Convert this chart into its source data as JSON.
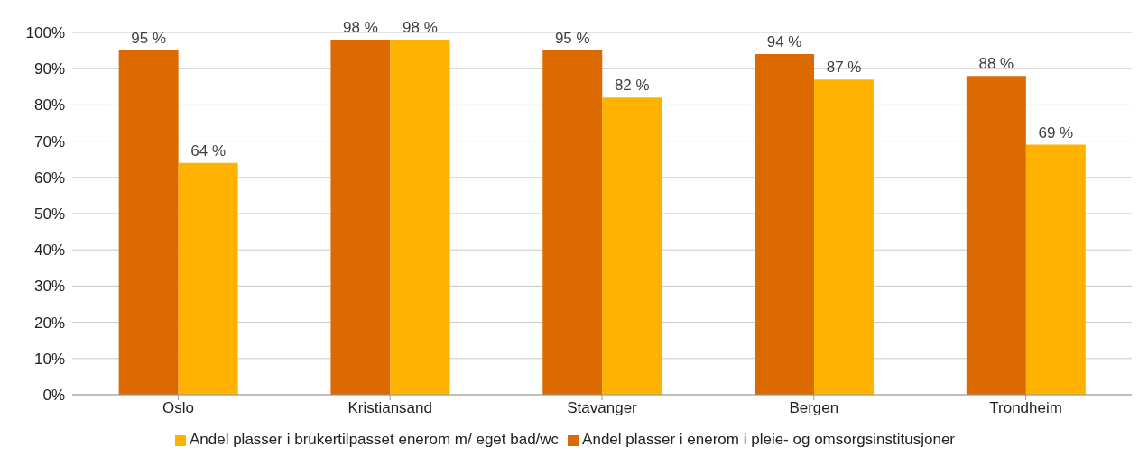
{
  "chart_data": {
    "type": "bar",
    "categories": [
      "Oslo",
      "Kristiansand",
      "Stavanger",
      "Bergen",
      "Trondheim"
    ],
    "series": [
      {
        "name": "Andel plasser i enerom i pleie- og omsorgsinstitusjoner",
        "color": "#dd6a00",
        "values": [
          95,
          98,
          95,
          94,
          88
        ],
        "value_labels": [
          "95 %",
          "98 %",
          "95 %",
          "94 %",
          "88 %"
        ]
      },
      {
        "name": "Andel plasser i brukertilpasset enerom m/ eget bad/wc",
        "color": "#ffb300",
        "values": [
          64,
          98,
          82,
          87,
          69
        ],
        "value_labels": [
          "64 %",
          "98 %",
          "82 %",
          "87 %",
          "69 %"
        ]
      }
    ],
    "ylim": [
      0,
      100
    ],
    "yticks": [
      {
        "value": 0,
        "label": "0%"
      },
      {
        "value": 10,
        "label": "10%"
      },
      {
        "value": 20,
        "label": "20%"
      },
      {
        "value": 30,
        "label": "30%"
      },
      {
        "value": 40,
        "label": "40%"
      },
      {
        "value": 50,
        "label": "50%"
      },
      {
        "value": 60,
        "label": "60%"
      },
      {
        "value": 70,
        "label": "70%"
      },
      {
        "value": 80,
        "label": "80%"
      },
      {
        "value": 90,
        "label": "90%"
      },
      {
        "value": 100,
        "label": "100%"
      }
    ],
    "grid": "y",
    "legend": "bottom"
  }
}
